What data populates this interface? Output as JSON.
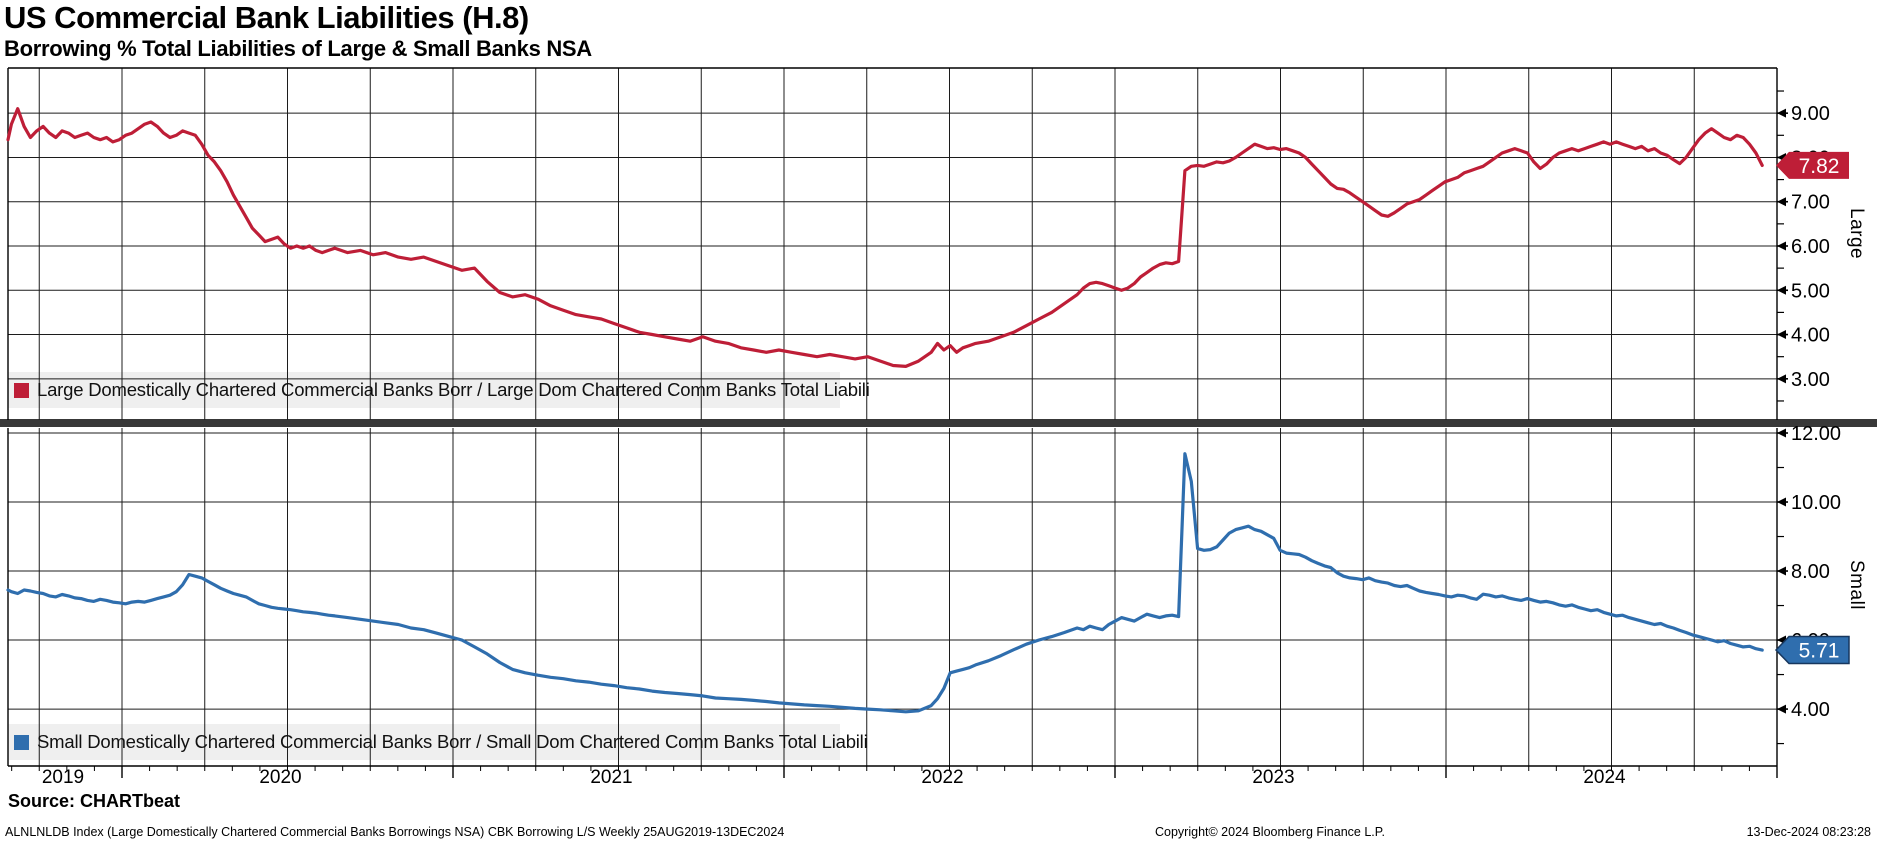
{
  "header": {
    "title": "US Commercial Bank Liabilities (H.8)",
    "subtitle": "Borrowing % Total Liabilities of Large & Small Banks NSA"
  },
  "footer": {
    "source": "Source: CHARTbeat",
    "left": "ALNLNLDB Index (Large Domestically Chartered Commercial Banks Borrowings NSA) CBK Borrowing L/S  Weekly 25AUG2019-13DEC2024",
    "center": "Copyright© 2024 Bloomberg Finance L.P.",
    "right": "13-Dec-2024 08:23:28"
  },
  "colors": {
    "large_line": "#be1e37",
    "small_line": "#2f6eae",
    "small_badge_border": "#17375e",
    "grid": "#1c1c1c",
    "divider": "#383838",
    "legend_bg": "#efefef",
    "badge_text": "#ffffff"
  },
  "x_axis": {
    "years": [
      "2019",
      "2020",
      "2021",
      "2022",
      "2023",
      "2024"
    ],
    "start_date": "25AUG2019",
    "end_date": "13DEC2024",
    "frequency": "Weekly"
  },
  "chart_data": {
    "type": "line",
    "x_unit": "weeks since 2019-08-25",
    "x_weeks": [
      0,
      1,
      2,
      3,
      4,
      5,
      6,
      7,
      8,
      9,
      10,
      11,
      12,
      13,
      14,
      15,
      16,
      17,
      18,
      19,
      20,
      21,
      22,
      23,
      24,
      25,
      26,
      27,
      28,
      29,
      30,
      31,
      32,
      33,
      34,
      35,
      36,
      37,
      38,
      39,
      40,
      41,
      42,
      43,
      44,
      45,
      46,
      47,
      48,
      49,
      50,
      51,
      52,
      54,
      56,
      58,
      60,
      62,
      64,
      66,
      68,
      70,
      72,
      74,
      76,
      78,
      80,
      82,
      84,
      86,
      88,
      90,
      92,
      94,
      96,
      98,
      100,
      102,
      104,
      106,
      108,
      110,
      112,
      114,
      116,
      118,
      120,
      122,
      124,
      126,
      128,
      130,
      132,
      134,
      136,
      138,
      140,
      142,
      144,
      146,
      147,
      148,
      149,
      150,
      151,
      152,
      153,
      155,
      157,
      159,
      161,
      163,
      165,
      167,
      169,
      170,
      171,
      172,
      173,
      174,
      175,
      176,
      177,
      178,
      179,
      180,
      181,
      182,
      183,
      184,
      185,
      186,
      187,
      188,
      189,
      190,
      191,
      192,
      193,
      194,
      195,
      196,
      197,
      198,
      199,
      200,
      201,
      202,
      203,
      204,
      205,
      206,
      207,
      208,
      209,
      210,
      211,
      212,
      213,
      214,
      215,
      216,
      217,
      218,
      219,
      220,
      221,
      222,
      223,
      224,
      225,
      226,
      227,
      228,
      229,
      230,
      231,
      232,
      233,
      234,
      235,
      236,
      237,
      238,
      239,
      240,
      241,
      242,
      243,
      244,
      245,
      246,
      247,
      248,
      249,
      250,
      251,
      252,
      253,
      254,
      255,
      256,
      257,
      258,
      259,
      260,
      261,
      262,
      263,
      264,
      265,
      266,
      267,
      268,
      269,
      270,
      271,
      272,
      273,
      274,
      275,
      276,
      277
    ],
    "panels": [
      {
        "panel_label": "Large",
        "legend": "Large Domestically Chartered Commercial Banks Borr / Large Dom Chartered Comm Banks Total Liabili",
        "color": "#be1e37",
        "badge": "7.82",
        "last_value": 7.82,
        "ylim": [
          2.07,
          10.02
        ],
        "ytick_values": [
          9,
          8,
          7,
          6,
          5,
          4,
          3
        ],
        "ytick_labels": [
          "9.00",
          "8.00",
          "7.00",
          "6.00",
          "5.00",
          "4.00",
          "3.00"
        ],
        "minor_ticks": [
          9.5,
          8.5,
          7.5,
          6.5,
          5.5,
          4.5,
          3.5,
          2.5
        ],
        "values": [
          8.4,
          8.75,
          9.1,
          8.7,
          8.45,
          8.6,
          8.7,
          8.55,
          8.45,
          8.6,
          8.55,
          8.45,
          8.5,
          8.55,
          8.45,
          8.4,
          8.45,
          8.35,
          8.4,
          8.5,
          8.55,
          8.65,
          8.75,
          8.8,
          8.7,
          8.55,
          8.45,
          8.5,
          8.6,
          8.55,
          8.5,
          8.3,
          8.05,
          7.9,
          7.7,
          7.45,
          7.15,
          6.9,
          6.65,
          6.4,
          6.25,
          6.1,
          6.15,
          6.2,
          6.05,
          5.95,
          6.0,
          5.95,
          6.0,
          5.9,
          5.85,
          5.9,
          5.95,
          5.85,
          5.9,
          5.8,
          5.85,
          5.75,
          5.7,
          5.75,
          5.65,
          5.55,
          5.45,
          5.5,
          5.2,
          4.95,
          4.85,
          4.9,
          4.8,
          4.65,
          4.55,
          4.45,
          4.4,
          4.35,
          4.25,
          4.15,
          4.05,
          4.0,
          3.95,
          3.9,
          3.85,
          3.95,
          3.85,
          3.8,
          3.7,
          3.65,
          3.6,
          3.65,
          3.6,
          3.55,
          3.5,
          3.55,
          3.5,
          3.45,
          3.5,
          3.4,
          3.3,
          3.28,
          3.4,
          3.6,
          3.8,
          3.65,
          3.75,
          3.6,
          3.7,
          3.75,
          3.8,
          3.85,
          3.95,
          4.05,
          4.2,
          4.35,
          4.5,
          4.7,
          4.9,
          5.05,
          5.15,
          5.18,
          5.15,
          5.1,
          5.05,
          5.0,
          5.05,
          5.15,
          5.3,
          5.4,
          5.5,
          5.58,
          5.62,
          5.6,
          5.65,
          7.7,
          7.8,
          7.82,
          7.8,
          7.85,
          7.9,
          7.88,
          7.92,
          8.0,
          8.1,
          8.2,
          8.3,
          8.25,
          8.2,
          8.22,
          8.18,
          8.2,
          8.15,
          8.1,
          8.0,
          7.85,
          7.7,
          7.55,
          7.4,
          7.3,
          7.28,
          7.2,
          7.1,
          7.0,
          6.9,
          6.8,
          6.7,
          6.67,
          6.75,
          6.85,
          6.95,
          7.0,
          7.05,
          7.15,
          7.25,
          7.35,
          7.45,
          7.5,
          7.55,
          7.65,
          7.7,
          7.75,
          7.8,
          7.9,
          8.0,
          8.1,
          8.15,
          8.2,
          8.15,
          8.1,
          7.9,
          7.75,
          7.85,
          8.0,
          8.1,
          8.15,
          8.2,
          8.15,
          8.2,
          8.25,
          8.3,
          8.35,
          8.3,
          8.35,
          8.3,
          8.25,
          8.2,
          8.25,
          8.15,
          8.2,
          8.1,
          8.05,
          7.95,
          7.86,
          8.0,
          8.2,
          8.4,
          8.55,
          8.65,
          8.55,
          8.45,
          8.4,
          8.5,
          8.45,
          8.3,
          8.1,
          7.82
        ]
      },
      {
        "panel_label": "Small",
        "legend": "Small Domestically Chartered Commercial Banks Borr / Small Dom Chartered Comm Banks Total Liabili",
        "color": "#2f6eae",
        "badge": "5.71",
        "last_value": 5.71,
        "ylim": [
          2.35,
          12.145
        ],
        "ytick_values": [
          12,
          10,
          8,
          6,
          4
        ],
        "ytick_labels": [
          "12.00",
          "10.00",
          "8.00",
          "6.00",
          "4.00"
        ],
        "minor_ticks": [
          11,
          9,
          7,
          5,
          3
        ],
        "values": [
          7.45,
          7.4,
          7.35,
          7.45,
          7.42,
          7.38,
          7.35,
          7.28,
          7.25,
          7.32,
          7.28,
          7.22,
          7.2,
          7.15,
          7.12,
          7.18,
          7.15,
          7.1,
          7.08,
          7.05,
          7.1,
          7.12,
          7.1,
          7.15,
          7.2,
          7.25,
          7.3,
          7.4,
          7.6,
          7.9,
          7.85,
          7.8,
          7.7,
          7.6,
          7.5,
          7.42,
          7.35,
          7.3,
          7.25,
          7.15,
          7.05,
          7.0,
          6.95,
          6.92,
          6.9,
          6.88,
          6.85,
          6.82,
          6.8,
          6.78,
          6.75,
          6.72,
          6.7,
          6.65,
          6.6,
          6.55,
          6.5,
          6.45,
          6.35,
          6.3,
          6.2,
          6.1,
          6.0,
          5.8,
          5.6,
          5.35,
          5.15,
          5.05,
          4.98,
          4.92,
          4.88,
          4.82,
          4.78,
          4.72,
          4.68,
          4.62,
          4.58,
          4.52,
          4.48,
          4.45,
          4.42,
          4.38,
          4.32,
          4.3,
          4.28,
          4.25,
          4.22,
          4.18,
          4.15,
          4.12,
          4.1,
          4.08,
          4.05,
          4.02,
          4.0,
          3.98,
          3.95,
          3.92,
          3.95,
          4.1,
          4.3,
          4.6,
          5.05,
          5.1,
          5.15,
          5.2,
          5.28,
          5.4,
          5.55,
          5.72,
          5.88,
          6.0,
          6.1,
          6.22,
          6.35,
          6.3,
          6.4,
          6.35,
          6.3,
          6.45,
          6.55,
          6.65,
          6.6,
          6.55,
          6.65,
          6.75,
          6.7,
          6.65,
          6.7,
          6.72,
          6.68,
          11.4,
          10.6,
          8.65,
          8.6,
          8.62,
          8.7,
          8.9,
          9.1,
          9.2,
          9.25,
          9.3,
          9.2,
          9.15,
          9.05,
          8.95,
          8.6,
          8.52,
          8.5,
          8.48,
          8.4,
          8.3,
          8.22,
          8.15,
          8.1,
          7.95,
          7.85,
          7.8,
          7.78,
          7.75,
          7.8,
          7.72,
          7.68,
          7.65,
          7.58,
          7.55,
          7.58,
          7.5,
          7.42,
          7.38,
          7.35,
          7.32,
          7.28,
          7.25,
          7.3,
          7.28,
          7.22,
          7.18,
          7.33,
          7.3,
          7.25,
          7.28,
          7.22,
          7.18,
          7.15,
          7.2,
          7.15,
          7.1,
          7.12,
          7.08,
          7.02,
          6.98,
          7.02,
          6.95,
          6.9,
          6.85,
          6.88,
          6.8,
          6.75,
          6.7,
          6.72,
          6.65,
          6.6,
          6.55,
          6.5,
          6.45,
          6.48,
          6.4,
          6.35,
          6.28,
          6.22,
          6.15,
          6.1,
          6.05,
          6.0,
          5.95,
          5.98,
          5.9,
          5.85,
          5.8,
          5.82,
          5.75,
          5.71
        ]
      }
    ]
  }
}
